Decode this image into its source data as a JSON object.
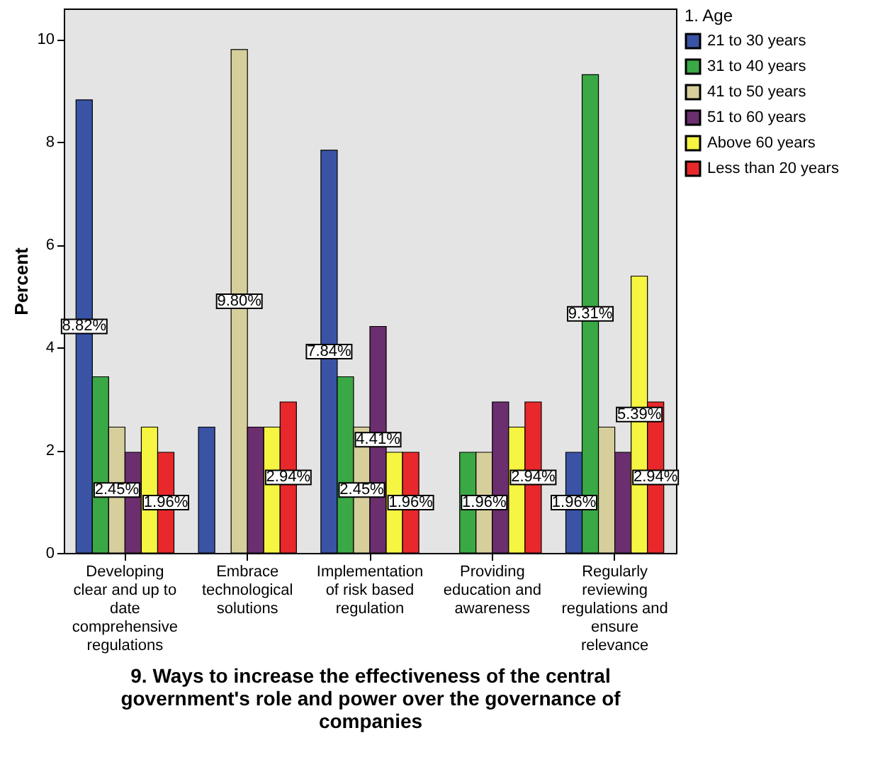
{
  "chart_data": {
    "type": "bar",
    "xlabel": "9. Ways to increase the effectiveness of the central government's role and power over the governance of companies",
    "ylabel": "Percent",
    "legend_title": "1. Age",
    "legend": "top right",
    "grid": false,
    "categories": [
      "Developing clear and up to date comprehensive regulations",
      "Embrace technological solutions",
      "Implementation of risk based regulation",
      "Providing education and awareness",
      "Regularly reviewing regulations and ensure relevance"
    ],
    "ylim": [
      0,
      10.6
    ],
    "yticks": [
      0,
      2,
      4,
      6,
      8,
      10
    ],
    "series": [
      {
        "name": "21 to 30 years",
        "color": "#3a53a4",
        "values": [
          8.82,
          2.45,
          7.84,
          null,
          1.96
        ],
        "value_labels": [
          "8.82%",
          null,
          "7.84%",
          null,
          "1.96%"
        ]
      },
      {
        "name": "31 to 40 years",
        "color": "#3aa845",
        "values": [
          3.43,
          null,
          3.43,
          1.96,
          9.31
        ],
        "value_labels": [
          null,
          null,
          null,
          null,
          "9.31%"
        ]
      },
      {
        "name": "41 to 50 years",
        "color": "#d6cf9c",
        "values": [
          2.45,
          9.8,
          2.45,
          1.96,
          2.45
        ],
        "value_labels": [
          "2.45%",
          "9.80%",
          "2.45%",
          "1.96%",
          null
        ]
      },
      {
        "name": "51 to 60 years",
        "color": "#6b2e6e",
        "values": [
          1.96,
          2.45,
          4.41,
          2.94,
          1.96
        ],
        "value_labels": [
          null,
          null,
          "4.41%",
          null,
          null
        ]
      },
      {
        "name": "Above 60 years",
        "color": "#f5f542",
        "values": [
          2.45,
          2.45,
          1.96,
          2.45,
          5.39
        ],
        "value_labels": [
          null,
          null,
          null,
          null,
          "5.39%"
        ]
      },
      {
        "name": "Less than 20 years",
        "color": "#e8282b",
        "values": [
          1.96,
          2.94,
          1.96,
          2.94,
          2.94
        ],
        "value_labels": [
          "1.96%",
          "2.94%",
          "1.96%",
          "2.94%",
          "2.94%"
        ]
      }
    ]
  }
}
